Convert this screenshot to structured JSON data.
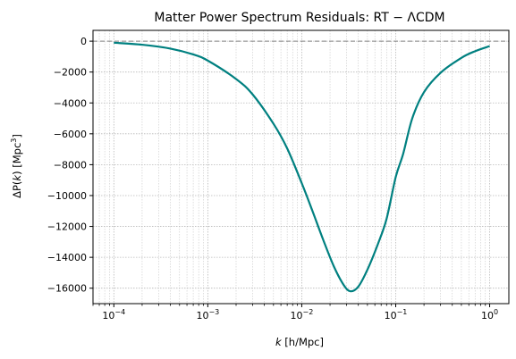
{
  "chart_data": {
    "type": "line",
    "title": "Matter Power Spectrum Residuals: RT − ΛCDM",
    "xlabel_italic": "k",
    "xlabel_rest": " [h/Mpc]",
    "ylabel_prefix": "ΔP(",
    "ylabel_k": "k",
    "ylabel_mid": ") [Mpc",
    "ylabel_sup": "3",
    "ylabel_end": "]",
    "xscale": "log",
    "xlim": [
      6e-05,
      1.6
    ],
    "ylim": [
      -17000,
      700
    ],
    "grid": true,
    "x_ticks": [
      {
        "value": 0.0001,
        "base": "10",
        "exp": "−4"
      },
      {
        "value": 0.001,
        "base": "10",
        "exp": "−3"
      },
      {
        "value": 0.01,
        "base": "10",
        "exp": "−2"
      },
      {
        "value": 0.1,
        "base": "10",
        "exp": "−1"
      },
      {
        "value": 1,
        "base": "10",
        "exp": "0"
      }
    ],
    "y_ticks": [
      {
        "value": 0,
        "label": "0"
      },
      {
        "value": -2000,
        "label": "−2000"
      },
      {
        "value": -4000,
        "label": "−4000"
      },
      {
        "value": -6000,
        "label": "−6000"
      },
      {
        "value": -8000,
        "label": "−8000"
      },
      {
        "value": -10000,
        "label": "−10000"
      },
      {
        "value": -12000,
        "label": "−12000"
      },
      {
        "value": -14000,
        "label": "−14000"
      },
      {
        "value": -16000,
        "label": "−16000"
      }
    ],
    "reference_line": {
      "y": 0,
      "style": "dashed",
      "color": "#808080"
    },
    "series": [
      {
        "color": "#008080",
        "x": [
          0.0001,
          0.0002,
          0.0004,
          0.0007,
          0.001,
          0.002,
          0.003,
          0.005,
          0.007,
          0.01,
          0.013,
          0.017,
          0.022,
          0.028,
          0.033,
          0.04,
          0.05,
          0.065,
          0.08,
          0.1,
          0.12,
          0.15,
          0.2,
          0.3,
          0.5,
          0.7,
          1.0
        ],
        "y": [
          -100,
          -230,
          -480,
          -860,
          -1260,
          -2450,
          -3450,
          -5350,
          -6950,
          -9200,
          -11000,
          -12900,
          -14600,
          -15800,
          -16200,
          -15900,
          -14800,
          -13100,
          -11500,
          -8800,
          -7300,
          -5000,
          -3300,
          -2050,
          -1080,
          -650,
          -320
        ]
      }
    ]
  }
}
